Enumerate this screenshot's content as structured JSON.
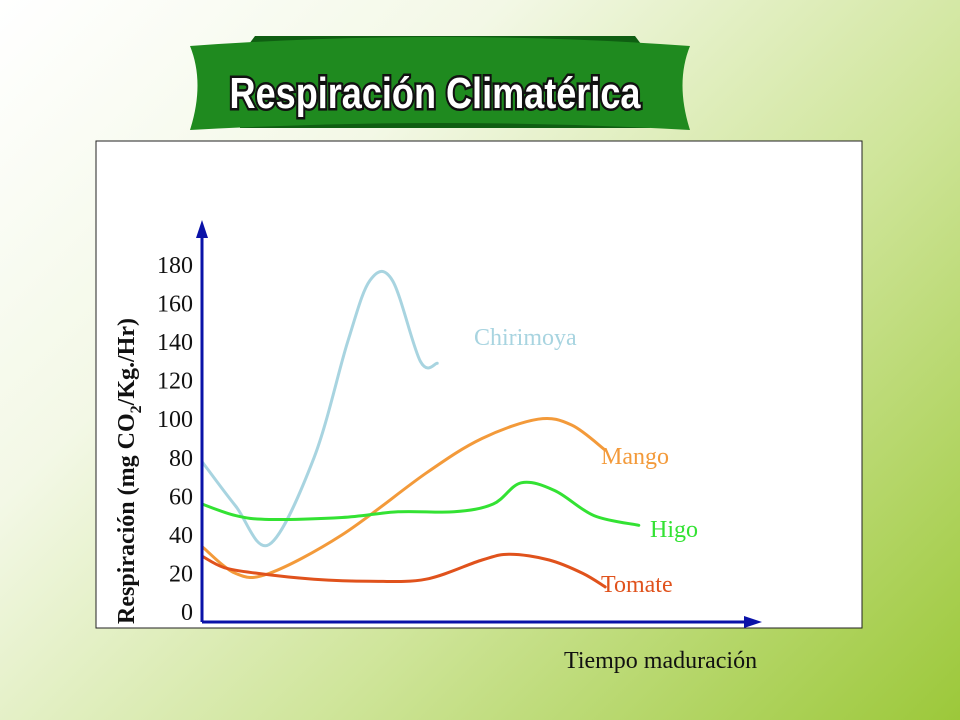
{
  "title": "Respiración Climatérica",
  "colors": {
    "banner_green": "#1f8a1f",
    "banner_dark": "#0f5e12",
    "chirimoya": "#a8d4e0",
    "mango": "#f39a3a",
    "higo": "#33e233",
    "tomate": "#e0521c",
    "axis": "#0a12a8"
  },
  "chart_data": {
    "type": "line",
    "title": "Respiración Climatérica",
    "xlabel": "Tiempo maduración",
    "ylabel_main": "Respiración (mg CO",
    "ylabel_sub": "2",
    "ylabel_tail": "/Kg./Hr)",
    "y_ticks": [
      "180",
      "160",
      "140",
      "120",
      "100",
      "80",
      "60",
      "40",
      "20",
      "0"
    ],
    "ylim": [
      0,
      185
    ],
    "xlim": [
      0,
      10
    ],
    "grid": false,
    "series": [
      {
        "name": "Chirimoya",
        "x": [
          0,
          0.6,
          1.2,
          2.0,
          2.6,
          3.0,
          3.4,
          3.9,
          4.2
        ],
        "y": [
          78,
          55,
          35,
          80,
          140,
          172,
          172,
          130,
          129
        ]
      },
      {
        "name": "Mango",
        "x": [
          0,
          0.6,
          1.2,
          2.5,
          4.0,
          5.0,
          6.0,
          6.6,
          7.2
        ],
        "y": [
          34,
          20,
          20,
          40,
          72,
          90,
          100,
          97,
          84
        ]
      },
      {
        "name": "Higo",
        "x": [
          0,
          0.6,
          1.2,
          2.5,
          3.5,
          4.5,
          5.2,
          5.7,
          6.3,
          7.0,
          7.8
        ],
        "y": [
          56,
          50,
          48,
          49,
          52,
          52,
          56,
          67,
          63,
          50,
          45
        ]
      },
      {
        "name": "Tomate",
        "x": [
          0,
          0.4,
          1.0,
          2.0,
          3.0,
          4.0,
          5.0,
          5.5,
          6.2,
          6.8,
          7.2
        ],
        "y": [
          29,
          23,
          20,
          17,
          16,
          17,
          27,
          30,
          27,
          20,
          13
        ]
      }
    ]
  }
}
